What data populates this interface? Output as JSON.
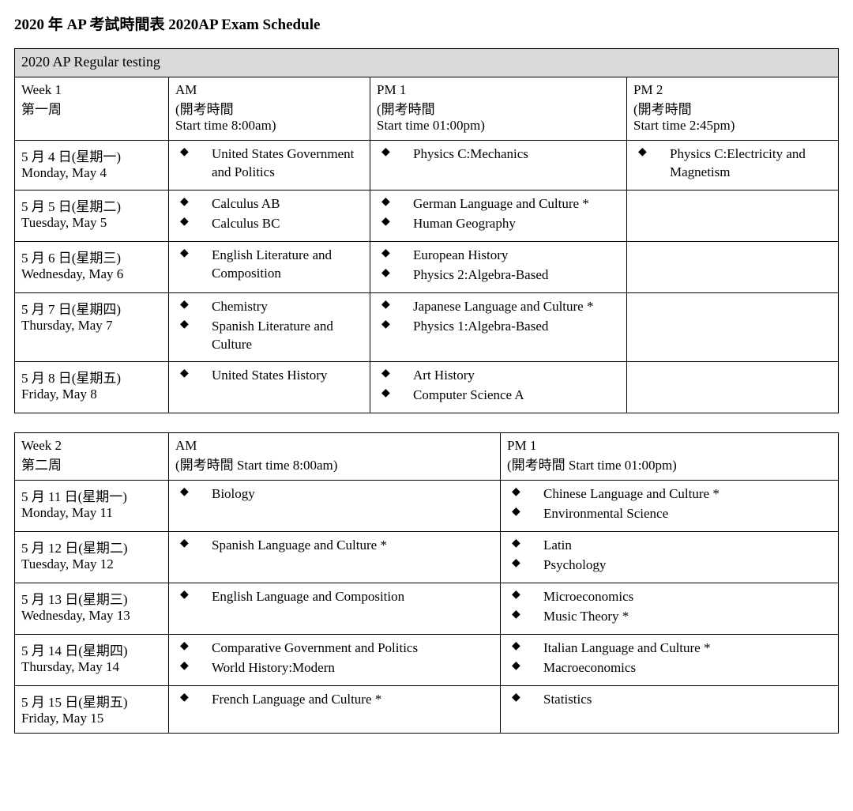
{
  "title": "2020 年 AP 考試時間表  2020AP Exam Schedule",
  "section_header": "2020 AP Regular testing",
  "week1": {
    "headers": {
      "week": {
        "l1": "Week 1",
        "l2": "第一周"
      },
      "am": {
        "l1": "AM",
        "l2": "(開考時間",
        "l3": "Start time 8:00am)"
      },
      "pm1": {
        "l1": "PM 1",
        "l2": "(開考時間",
        "l3": "Start time 01:00pm)"
      },
      "pm2": {
        "l1": "PM 2",
        "l2": "(開考時間",
        "l3": "Start time 2:45pm)"
      }
    },
    "rows": [
      {
        "date": {
          "l1": "5 月 4 日(星期一)",
          "l2": "Monday, May 4"
        },
        "am": [
          "United States Government and Politics"
        ],
        "pm1": [
          "Physics C:Mechanics"
        ],
        "pm2": [
          "Physics C:Electricity and Magnetism"
        ]
      },
      {
        "date": {
          "l1": "5 月 5 日(星期二)",
          "l2": "Tuesday, May 5"
        },
        "am": [
          "Calculus AB",
          "Calculus BC"
        ],
        "pm1": [
          "German Language and Culture *",
          "Human Geography"
        ],
        "pm2": []
      },
      {
        "date": {
          "l1": "5 月 6 日(星期三)",
          "l2": "Wednesday, May 6"
        },
        "am": [
          "English Literature and Composition"
        ],
        "pm1": [
          "European History",
          "Physics 2:Algebra-Based"
        ],
        "pm2": []
      },
      {
        "date": {
          "l1": "5 月 7 日(星期四)",
          "l2": "Thursday, May 7"
        },
        "am": [
          "Chemistry",
          "Spanish Literature and Culture"
        ],
        "pm1": [
          "Japanese Language and Culture *",
          "Physics 1:Algebra-Based"
        ],
        "pm2": []
      },
      {
        "date": {
          "l1": "5 月 8 日(星期五)",
          "l2": "Friday, May 8"
        },
        "am": [
          "United States History"
        ],
        "pm1": [
          "Art History",
          "Computer Science A"
        ],
        "pm2": []
      }
    ]
  },
  "week2": {
    "headers": {
      "week": {
        "l1": "Week 2",
        "l2": "第二周"
      },
      "am": {
        "l1": "AM",
        "l2": "(開考時間 Start time 8:00am)"
      },
      "pm1": {
        "l1": "PM 1",
        "l2": "(開考時間 Start time 01:00pm)"
      }
    },
    "rows": [
      {
        "date": {
          "l1": "5 月 11 日(星期一)",
          "l2": "Monday, May 11"
        },
        "am": [
          "Biology"
        ],
        "pm1": [
          "Chinese Language and Culture *",
          "Environmental Science"
        ]
      },
      {
        "date": {
          "l1": "5 月 12 日(星期二)",
          "l2": "Tuesday, May 12"
        },
        "am": [
          "Spanish Language and Culture *"
        ],
        "pm1": [
          "Latin",
          "Psychology"
        ]
      },
      {
        "date": {
          "l1": "5 月 13 日(星期三)",
          "l2": "Wednesday, May 13"
        },
        "am": [
          "English Language and Composition"
        ],
        "pm1": [
          "Microeconomics",
          "Music Theory *"
        ]
      },
      {
        "date": {
          "l1": "5 月 14 日(星期四)",
          "l2": "Thursday, May 14"
        },
        "am": [
          "Comparative Government and Politics",
          "World History:Modern"
        ],
        "pm1": [
          "Italian Language and Culture *",
          "Macroeconomics"
        ]
      },
      {
        "date": {
          "l1": "5 月 15 日(星期五)",
          "l2": "Friday, May 15"
        },
        "am": [
          "French Language and Culture *"
        ],
        "pm1": [
          "Statistics"
        ]
      }
    ]
  }
}
